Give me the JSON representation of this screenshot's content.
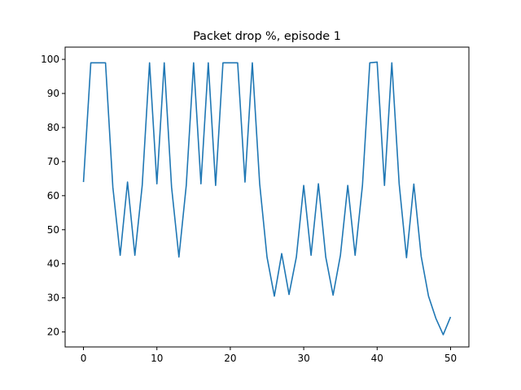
{
  "chart_data": {
    "type": "line",
    "title": "Packet drop %, episode 1",
    "xlabel": "",
    "ylabel": "",
    "xlim": [
      -2.5,
      52.5
    ],
    "ylim": [
      15.6,
      103.6
    ],
    "xticks": [
      0,
      10,
      20,
      30,
      40,
      50
    ],
    "yticks": [
      20,
      30,
      40,
      50,
      60,
      70,
      80,
      90,
      100
    ],
    "grid": false,
    "line_color": "#1f77b4",
    "series": [
      {
        "x": [
          0,
          1,
          2,
          3,
          4,
          5,
          6,
          7,
          8,
          9,
          10,
          11,
          12,
          13,
          14,
          15,
          16,
          17,
          18,
          19,
          20,
          21,
          22,
          23,
          24,
          25,
          26,
          27,
          28,
          29,
          30,
          31,
          32,
          33,
          34,
          35,
          36,
          37,
          38,
          39,
          40,
          41,
          42,
          43,
          44,
          45,
          46,
          47,
          48,
          49,
          50
        ],
        "values": [
          64,
          99,
          99,
          99,
          62.5,
          42.5,
          64,
          42.5,
          63,
          99,
          63.5,
          99,
          62.5,
          42,
          63,
          99,
          63.5,
          99,
          63,
          99,
          99,
          99,
          64,
          99,
          63.5,
          42,
          30.5,
          43,
          31,
          42,
          63,
          42.5,
          63.5,
          42,
          30.8,
          42.5,
          63,
          42.5,
          63,
          99,
          99.2,
          63,
          99,
          63.5,
          41.8,
          63.4,
          42.2,
          30.5,
          24,
          19.2,
          24.4
        ]
      }
    ]
  }
}
